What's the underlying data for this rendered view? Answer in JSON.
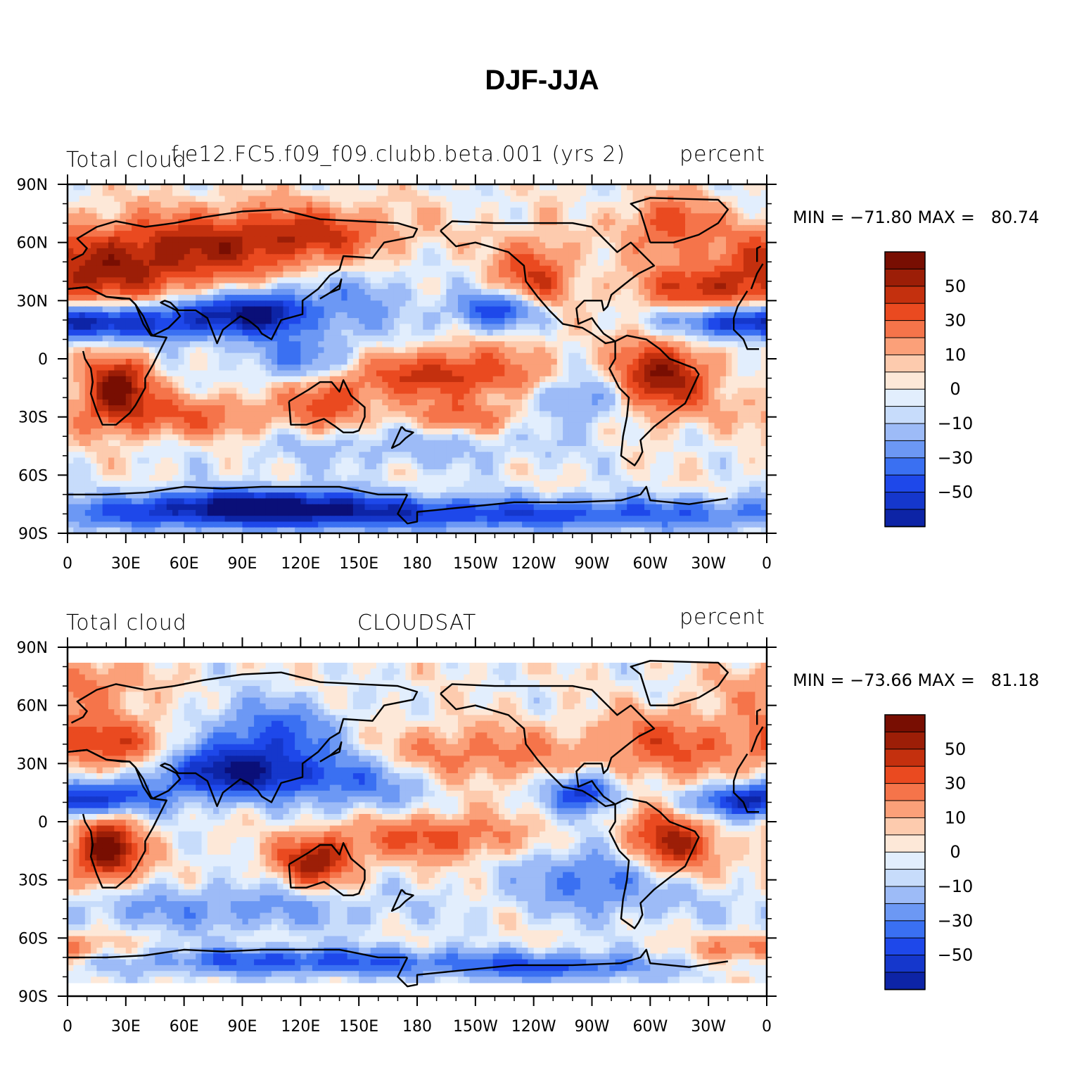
{
  "title": "DJF-JJA",
  "colors": {
    "levels": [
      "#0a0f78",
      "#0d24a6",
      "#1537cc",
      "#1e48ea",
      "#3a70f2",
      "#6c98f4",
      "#9dbbf7",
      "#c7dcfb",
      "#e2eefd",
      "#fde8d8",
      "#fdcbae",
      "#fba079",
      "#f5744a",
      "#ea4a20",
      "#c4300e",
      "#9c1e07",
      "#780e02"
    ],
    "coast": "#000000"
  },
  "chart_data": [
    {
      "type": "heatmap",
      "title_left": "Total cloud",
      "title_center": "f.e12.FC5.f09_f09.clubb.beta.001 (yrs 2)",
      "title_right": "percent",
      "stats_text": "MIN = −71.80 MAX =   80.74",
      "min": -71.8,
      "max": 80.74,
      "xlim": [
        0,
        360
      ],
      "ylim": [
        -90,
        90
      ],
      "x_ticks": [
        "0",
        "30E",
        "60E",
        "90E",
        "120E",
        "150E",
        "180",
        "150W",
        "120W",
        "90W",
        "60W",
        "30W",
        "0"
      ],
      "y_ticks": [
        "90N",
        "60N",
        "30N",
        "0",
        "30S",
        "60S",
        "90S"
      ],
      "colorbar_levels": [
        -70,
        -60,
        -50,
        -40,
        -30,
        -20,
        -10,
        -5,
        0,
        5,
        10,
        20,
        30,
        40,
        50,
        60,
        70
      ],
      "colorbar_labels": [
        "50",
        "30",
        "10",
        "0",
        "−10",
        "−30",
        "−50"
      ],
      "anomalies": [
        {
          "lon": 20,
          "lat": 45,
          "v": 45,
          "w": 40,
          "h": 14
        },
        {
          "lon": 80,
          "lat": 60,
          "v": 38,
          "w": 45,
          "h": 12
        },
        {
          "lon": 130,
          "lat": 65,
          "v": 25,
          "w": 30,
          "h": 10
        },
        {
          "lon": 25,
          "lat": -15,
          "v": 65,
          "w": 12,
          "h": 11
        },
        {
          "lon": 60,
          "lat": -30,
          "v": 28,
          "w": 40,
          "h": 8
        },
        {
          "lon": 135,
          "lat": -22,
          "v": 32,
          "w": 14,
          "h": 9
        },
        {
          "lon": 195,
          "lat": -8,
          "v": 45,
          "w": 35,
          "h": 9
        },
        {
          "lon": 205,
          "lat": -30,
          "v": 25,
          "w": 25,
          "h": 6
        },
        {
          "lon": 305,
          "lat": -10,
          "v": 60,
          "w": 18,
          "h": 13
        },
        {
          "lon": 240,
          "lat": 40,
          "v": 40,
          "w": 14,
          "h": 16
        },
        {
          "lon": 310,
          "lat": 70,
          "v": 35,
          "w": 15,
          "h": 10
        },
        {
          "lon": 325,
          "lat": 35,
          "v": 30,
          "w": 25,
          "h": 8
        },
        {
          "lon": 15,
          "lat": 18,
          "v": -45,
          "w": 30,
          "h": 6
        },
        {
          "lon": 75,
          "lat": 22,
          "v": -55,
          "w": 30,
          "h": 8
        },
        {
          "lon": 105,
          "lat": 25,
          "v": -40,
          "w": 15,
          "h": 8
        },
        {
          "lon": 150,
          "lat": 30,
          "v": -22,
          "w": 20,
          "h": 15
        },
        {
          "lon": 225,
          "lat": 25,
          "v": -55,
          "w": 18,
          "h": 7
        },
        {
          "lon": 340,
          "lat": 20,
          "v": -40,
          "w": 25,
          "h": 6
        },
        {
          "lon": 170,
          "lat": -45,
          "v": -15,
          "w": 60,
          "h": 8
        },
        {
          "lon": 265,
          "lat": -20,
          "v": -30,
          "w": 20,
          "h": 10
        },
        {
          "lon": 180,
          "lat": -80,
          "v": -48,
          "w": 180,
          "h": 6
        },
        {
          "lon": 100,
          "lat": -75,
          "v": -55,
          "w": 40,
          "h": 6
        },
        {
          "lon": 120,
          "lat": 0,
          "v": -30,
          "w": 20,
          "h": 8
        }
      ]
    },
    {
      "type": "heatmap",
      "title_left": "Total cloud",
      "title_center": "CLOUDSAT",
      "title_right": "percent",
      "stats_text": "MIN = −73.66 MAX =   81.18",
      "min": -73.66,
      "max": 81.18,
      "xlim": [
        0,
        360
      ],
      "ylim": [
        -90,
        90
      ],
      "data_lat_range": [
        -82,
        82
      ],
      "x_ticks": [
        "0",
        "30E",
        "60E",
        "90E",
        "120E",
        "150E",
        "180",
        "150W",
        "120W",
        "90W",
        "60W",
        "30W",
        "0"
      ],
      "y_ticks": [
        "90N",
        "60N",
        "30N",
        "0",
        "30S",
        "60S",
        "90S"
      ],
      "colorbar_levels": [
        -70,
        -60,
        -50,
        -40,
        -30,
        -20,
        -10,
        -5,
        0,
        5,
        10,
        20,
        30,
        40,
        50,
        60,
        70
      ],
      "colorbar_labels": [
        "50",
        "30",
        "10",
        "0",
        "−10",
        "−30",
        "−50"
      ],
      "anomalies": [
        {
          "lon": 20,
          "lat": 40,
          "v": 38,
          "w": 25,
          "h": 10
        },
        {
          "lon": 20,
          "lat": -15,
          "v": 70,
          "w": 12,
          "h": 11
        },
        {
          "lon": 128,
          "lat": -20,
          "v": 55,
          "w": 14,
          "h": 9
        },
        {
          "lon": 190,
          "lat": -8,
          "v": 35,
          "w": 30,
          "h": 8
        },
        {
          "lon": 310,
          "lat": -12,
          "v": 55,
          "w": 16,
          "h": 12
        },
        {
          "lon": 210,
          "lat": 35,
          "v": 25,
          "w": 40,
          "h": 10
        },
        {
          "lon": 310,
          "lat": 40,
          "v": 30,
          "w": 25,
          "h": 12
        },
        {
          "lon": 10,
          "lat": 70,
          "v": 25,
          "w": 20,
          "h": 10
        },
        {
          "lon": 355,
          "lat": -65,
          "v": 30,
          "w": 20,
          "h": 5
        },
        {
          "lon": 85,
          "lat": 25,
          "v": -65,
          "w": 30,
          "h": 9
        },
        {
          "lon": 15,
          "lat": 12,
          "v": -45,
          "w": 25,
          "h": 6
        },
        {
          "lon": 105,
          "lat": 45,
          "v": -40,
          "w": 25,
          "h": 12
        },
        {
          "lon": 265,
          "lat": 15,
          "v": -55,
          "w": 12,
          "h": 7
        },
        {
          "lon": 345,
          "lat": 10,
          "v": -40,
          "w": 18,
          "h": 6
        },
        {
          "lon": 150,
          "lat": 20,
          "v": -30,
          "w": 25,
          "h": 10
        },
        {
          "lon": 275,
          "lat": -30,
          "v": -35,
          "w": 30,
          "h": 12
        },
        {
          "lon": 80,
          "lat": -45,
          "v": -25,
          "w": 60,
          "h": 8
        },
        {
          "lon": 120,
          "lat": -72,
          "v": -45,
          "w": 60,
          "h": 5
        },
        {
          "lon": 250,
          "lat": -75,
          "v": -40,
          "w": 40,
          "h": 5
        }
      ]
    }
  ]
}
